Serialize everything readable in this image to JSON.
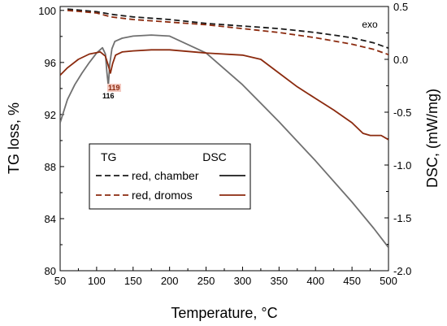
{
  "chart_data": {
    "type": "line",
    "xlabel": "Temperature, °C",
    "ylabel_left": "TG loss, %",
    "ylabel_right": "DSC, (mW/mg)",
    "x_ticks": [
      50,
      100,
      150,
      200,
      250,
      300,
      350,
      400,
      450,
      500
    ],
    "y_left_ticks": [
      80,
      84,
      88,
      92,
      96,
      100
    ],
    "y_right_ticks": [
      "0.5",
      "0.0",
      "-0.5",
      "-1.0",
      "-1.5",
      "-2.0"
    ],
    "x_range": [
      50,
      500
    ],
    "y_left_range": [
      80,
      100.3
    ],
    "y_right_range": [
      -2.0,
      0.5
    ],
    "legend": {
      "tg_header": "TG",
      "dsc_header": "DSC",
      "entries": [
        "red, chamber",
        "red, dromos"
      ]
    },
    "annotations": {
      "exo": "exo",
      "peak_1": "116",
      "peak_2": "119"
    },
    "series": [
      {
        "name": "TG red, chamber",
        "axis": "left",
        "style": "dashed",
        "color": "#1a1a1a",
        "x": [
          60,
          80,
          100,
          120,
          150,
          200,
          250,
          300,
          350,
          400,
          450,
          480,
          500
        ],
        "y": [
          100.1,
          100.0,
          99.9,
          99.7,
          99.5,
          99.3,
          99.0,
          98.8,
          98.6,
          98.3,
          97.9,
          97.5,
          97.1
        ]
      },
      {
        "name": "TG red, dromos",
        "axis": "left",
        "style": "dashed",
        "color": "#8b2a0e",
        "x": [
          60,
          80,
          100,
          120,
          150,
          200,
          250,
          300,
          350,
          400,
          450,
          480,
          500
        ],
        "y": [
          100.0,
          99.9,
          99.8,
          99.5,
          99.3,
          99.1,
          98.9,
          98.6,
          98.3,
          97.9,
          97.4,
          97.0,
          96.6
        ]
      },
      {
        "name": "DSC red, chamber",
        "axis": "right",
        "style": "solid",
        "color": "#707070",
        "x": [
          50,
          60,
          70,
          80,
          90,
          100,
          108,
          112,
          114,
          116,
          118,
          121,
          125,
          135,
          150,
          175,
          200,
          250,
          300,
          350,
          400,
          450,
          480,
          500
        ],
        "y": [
          -0.6,
          -0.38,
          -0.24,
          -0.13,
          -0.03,
          0.06,
          0.11,
          0.05,
          -0.12,
          -0.25,
          -0.05,
          0.1,
          0.17,
          0.2,
          0.22,
          0.23,
          0.22,
          0.06,
          -0.24,
          -0.59,
          -0.96,
          -1.35,
          -1.6,
          -1.78
        ]
      },
      {
        "name": "DSC red, dromos",
        "axis": "right",
        "style": "solid",
        "color": "#8b2a0e",
        "x": [
          50,
          60,
          75,
          90,
          105,
          112,
          116,
          119,
          122,
          126,
          135,
          150,
          175,
          200,
          250,
          300,
          325,
          350,
          375,
          400,
          425,
          450,
          465,
          475,
          490,
          500
        ],
        "y": [
          -0.15,
          -0.08,
          0.0,
          0.05,
          0.07,
          0.03,
          -0.06,
          -0.13,
          -0.04,
          0.04,
          0.07,
          0.08,
          0.09,
          0.09,
          0.06,
          0.04,
          0.0,
          -0.13,
          -0.26,
          -0.37,
          -0.48,
          -0.6,
          -0.7,
          -0.72,
          -0.72,
          -0.76
        ]
      }
    ]
  }
}
